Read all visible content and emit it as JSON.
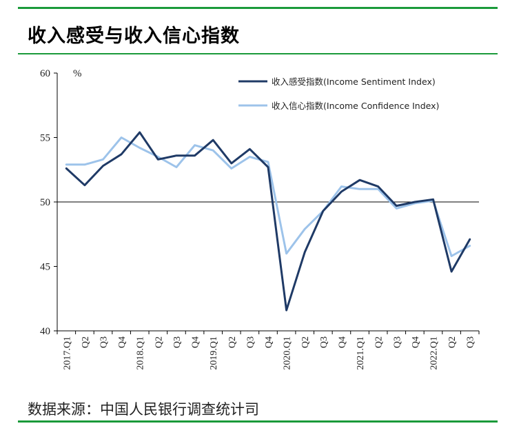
{
  "header": {
    "title": "收入感受与收入信心指数"
  },
  "footer": {
    "source": "数据来源：中国人民银行调查统计司"
  },
  "colors": {
    "rule": "#1a9a3a",
    "series1": "#1f3a66",
    "series2": "#9dc3ea"
  },
  "chart_data": {
    "type": "line",
    "unit": "%",
    "ylim": [
      40,
      60
    ],
    "yticks": [
      40,
      45,
      50,
      55,
      60
    ],
    "reference_line": 50,
    "grid": false,
    "legend_placement": "top-right",
    "categories": [
      "2017.Q1",
      "Q2",
      "Q3",
      "Q4",
      "2018.Q1",
      "Q2",
      "Q3",
      "Q4",
      "2019.Q1",
      "Q2",
      "Q3",
      "Q4",
      "2020.Q1",
      "Q2",
      "Q3",
      "Q4",
      "2021.Q1",
      "Q2",
      "Q3",
      "Q4",
      "2022.Q1",
      "Q2",
      "Q3"
    ],
    "series": [
      {
        "name": "收入感受指数(Income Sentiment Index)",
        "values": [
          52.6,
          51.3,
          52.8,
          53.7,
          55.4,
          53.3,
          53.6,
          53.6,
          54.8,
          53.0,
          54.1,
          52.7,
          41.6,
          46.1,
          49.3,
          50.8,
          51.7,
          51.2,
          49.7,
          50.0,
          50.2,
          44.6,
          47.1
        ]
      },
      {
        "name": "收入信心指数(Income Confidence Index)",
        "values": [
          52.9,
          52.9,
          53.3,
          55.0,
          54.2,
          53.5,
          52.7,
          54.4,
          54.0,
          52.6,
          53.5,
          53.1,
          46.0,
          47.9,
          49.3,
          51.2,
          51.0,
          51.0,
          49.5,
          49.9,
          50.1,
          45.8,
          46.6
        ]
      }
    ]
  }
}
